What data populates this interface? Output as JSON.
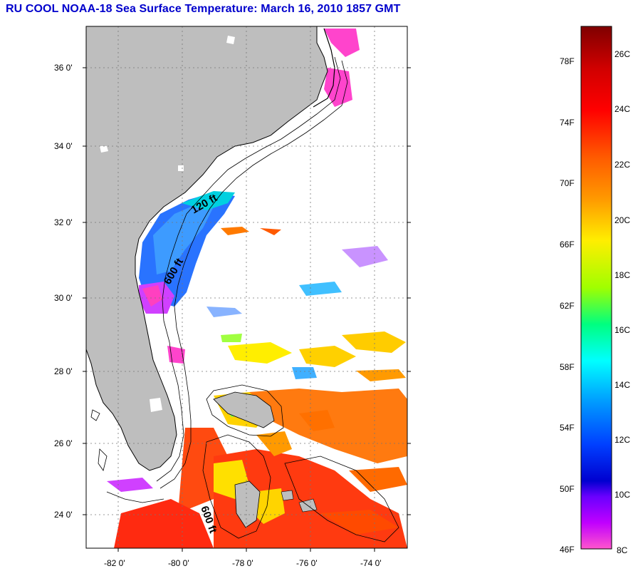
{
  "title": "RU COOL  NOAA-18  Sea Surface Temperature:  March 16, 2010 1857 GMT",
  "map": {
    "lat_labels": [
      "36 0'",
      "34 0'",
      "32 0'",
      "30 0'",
      "28 0'",
      "26 0'",
      "24 0'"
    ],
    "lon_labels": [
      "-82 0'",
      "-80 0'",
      "-78 0'",
      "-76 0'",
      "-74 0'"
    ],
    "contour_labels": [
      "120 ft",
      "600 ft",
      "600 ft"
    ]
  },
  "colorbar": {
    "fahrenheit_labels": [
      "78F",
      "74F",
      "70F",
      "66F",
      "62F",
      "58F",
      "54F",
      "50F",
      "46F"
    ],
    "celsius_labels": [
      "26C",
      "24C",
      "22C",
      "20C",
      "18C",
      "16C",
      "14C",
      "12C",
      "10C",
      "8C"
    ],
    "colors": [
      "#7f0000",
      "#ff0000",
      "#ff8000",
      "#ffff00",
      "#80ff00",
      "#00ffff",
      "#0080ff",
      "#0000ff",
      "#8000ff",
      "#ff66cc"
    ]
  },
  "colors": {
    "land": "#bebebe",
    "water_no_data": "#ffffff",
    "title": "#0000cc"
  }
}
